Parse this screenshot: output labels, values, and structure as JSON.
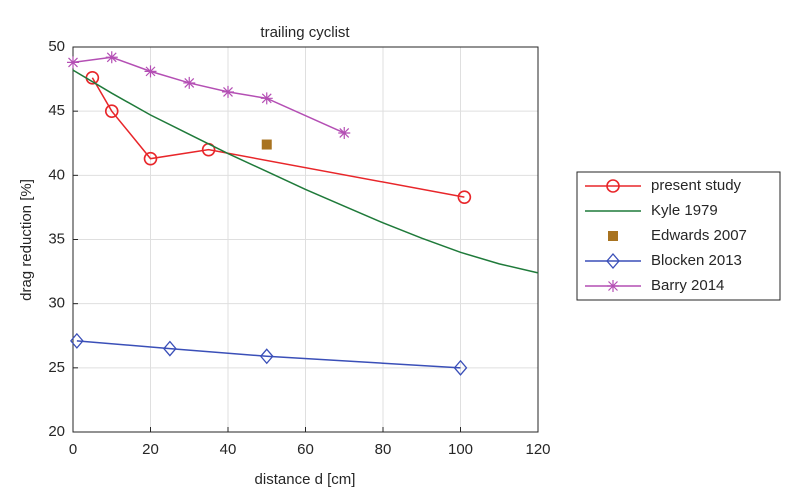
{
  "chart_data": {
    "type": "line",
    "title": "trailing cyclist",
    "x_label": "distance d [cm]",
    "y_label": "drag reduction [%]",
    "xlim": [
      0,
      120
    ],
    "ylim": [
      20,
      50
    ],
    "xticks": [
      0,
      20,
      40,
      60,
      80,
      100,
      120
    ],
    "yticks": [
      20,
      25,
      30,
      35,
      40,
      45,
      50
    ],
    "grid": true,
    "legend": "outside-right",
    "series": [
      {
        "name": "present study",
        "color": "#e8262a",
        "marker": "circle",
        "x": [
          5,
          10,
          20,
          35,
          101
        ],
        "values": [
          47.6,
          45,
          41.3,
          42,
          38.3
        ]
      },
      {
        "name": "Kyle 1979",
        "color": "#1f7a3a",
        "x": [
          0,
          10,
          20,
          30,
          40,
          50,
          60,
          70,
          80,
          90,
          100,
          110,
          120
        ],
        "values": [
          48.2,
          46.4,
          44.7,
          43.2,
          41.7,
          40.3,
          38.9,
          37.6,
          36.3,
          35.1,
          34.0,
          33.1,
          32.4
        ]
      },
      {
        "name": "Edwards 2007",
        "color": "#a87320",
        "marker": "square",
        "line": false,
        "x": [
          50
        ],
        "values": [
          42.4
        ]
      },
      {
        "name": "Blocken 2013",
        "color": "#3a4fb8",
        "marker": "diamond",
        "x": [
          1,
          25,
          50,
          100
        ],
        "values": [
          27.1,
          26.5,
          25.9,
          25
        ]
      },
      {
        "name": "Barry 2014",
        "color": "#b44fb4",
        "marker": "star",
        "x": [
          0,
          10,
          20,
          30,
          40,
          50,
          70
        ],
        "values": [
          48.8,
          49.2,
          48.1,
          47.2,
          46.5,
          46,
          43.3
        ]
      }
    ]
  }
}
